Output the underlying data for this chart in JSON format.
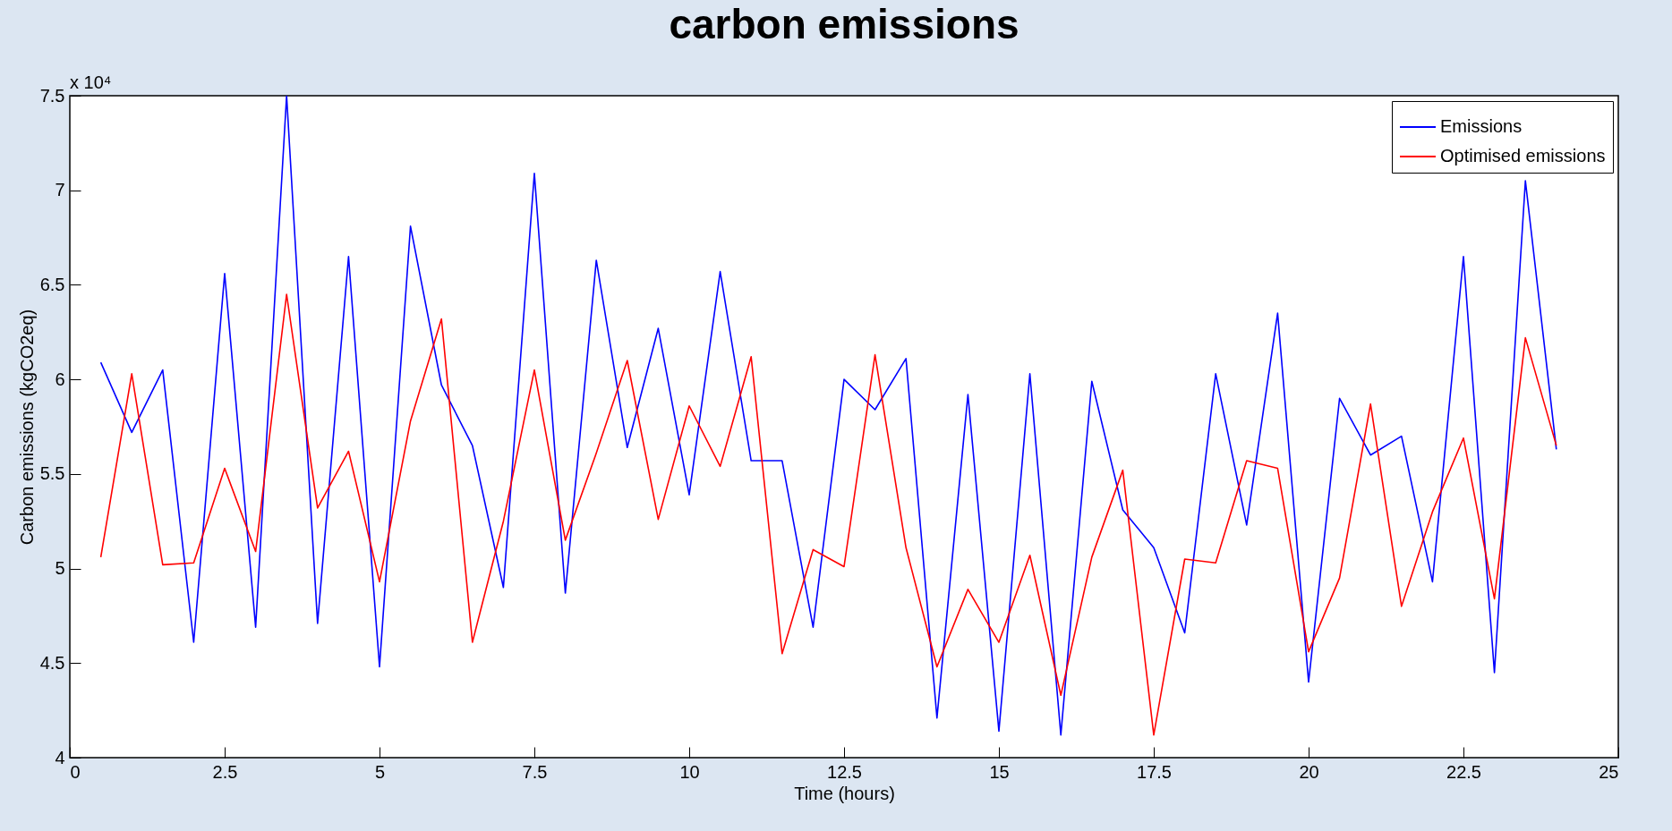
{
  "chart_data": {
    "type": "line",
    "title": "carbon emissions",
    "xlabel": "Time (hours)",
    "ylabel": "Carbon emissions (kgCO2eq)",
    "annotations": [
      "x 10⁴"
    ],
    "x": [
      0.5,
      1,
      1.5,
      2,
      2.5,
      3,
      3.5,
      4,
      4.5,
      5,
      5.5,
      6,
      6.5,
      7,
      7.5,
      8,
      8.5,
      9,
      9.5,
      10,
      10.5,
      11,
      11.5,
      12,
      12.5,
      13,
      13.5,
      14,
      14.5,
      15,
      15.5,
      16,
      16.5,
      17,
      17.5,
      18,
      18.5,
      19,
      19.5,
      20,
      20.5,
      21,
      21.5,
      22,
      22.5,
      23,
      23.5,
      24
    ],
    "series": [
      {
        "name": "Emissions",
        "color": "#0000ff",
        "values": [
          6.09,
          5.72,
          6.05,
          4.61,
          6.56,
          4.69,
          7.5,
          4.71,
          6.65,
          4.48,
          6.81,
          5.97,
          5.65,
          4.9,
          7.09,
          4.87,
          6.63,
          5.64,
          6.27,
          5.39,
          6.57,
          5.57,
          5.57,
          4.69,
          6.0,
          5.84,
          6.11,
          4.21,
          5.92,
          4.14,
          6.03,
          4.12,
          5.99,
          5.31,
          5.11,
          4.66,
          6.03,
          5.23,
          6.35,
          4.4,
          5.9,
          5.6,
          5.7,
          4.93,
          6.65,
          4.45,
          7.05,
          5.63
        ]
      },
      {
        "name": "Optimised emissions",
        "color": "#ff0000",
        "values": [
          5.06,
          6.03,
          5.02,
          5.03,
          5.53,
          5.09,
          6.45,
          5.32,
          5.62,
          4.93,
          5.78,
          6.32,
          4.61,
          5.25,
          6.05,
          5.15,
          5.61,
          6.1,
          5.26,
          5.86,
          5.54,
          6.12,
          4.55,
          5.1,
          5.01,
          6.13,
          5.11,
          4.48,
          4.89,
          4.61,
          5.07,
          4.33,
          5.06,
          5.52,
          4.12,
          5.05,
          5.03,
          5.57,
          5.53,
          4.56,
          4.95,
          5.87,
          4.8,
          5.3,
          5.69,
          4.84,
          6.22,
          5.65
        ]
      }
    ],
    "xlim": [
      0,
      25
    ],
    "xticks": [
      0,
      2.5,
      5,
      7.5,
      10,
      12.5,
      15,
      17.5,
      20,
      22.5,
      25
    ],
    "ylim": [
      4,
      7.5
    ],
    "yticks": [
      4,
      4.5,
      5,
      5.5,
      6,
      6.5,
      7,
      7.5
    ],
    "legend": "top right",
    "grid": false,
    "marker": "none",
    "line_style": "solid"
  }
}
